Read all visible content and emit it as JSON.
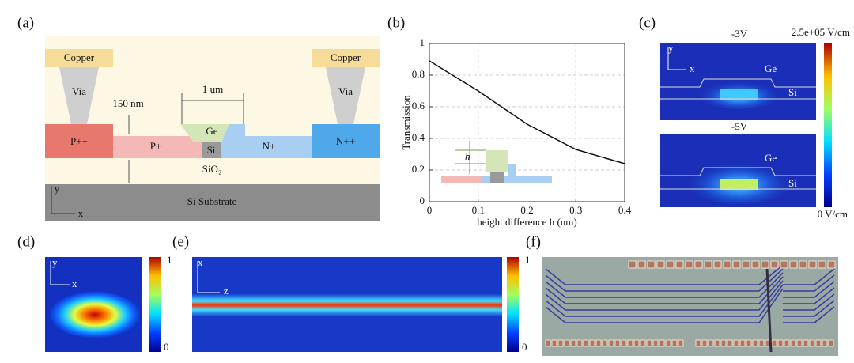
{
  "panels": {
    "a": {
      "label": "(a)",
      "copper_left": "Copper",
      "copper_right": "Copper",
      "via_left": "Via",
      "via_right": "Via",
      "dim_thickness": "150 nm",
      "dim_width": "1 um",
      "ge": "Ge",
      "si": "Si",
      "p_plus_plus": "P++",
      "p_plus": "P+",
      "n_plus": "N+",
      "n_plus_plus": "N++",
      "oxide": "SiO₂",
      "substrate": "Si Substrate",
      "axis_y": "y",
      "axis_x": "x"
    },
    "c": {
      "label": "(c)",
      "top_voltage": "-3V",
      "bottom_voltage": "-5V",
      "colorbar_max": "2.5e+05 V/cm",
      "colorbar_min": "0 V/cm",
      "top_ge": "Ge",
      "top_si": "Si",
      "bottom_ge": "Ge",
      "bottom_si": "Si",
      "axis_y": "y",
      "axis_x": "x"
    },
    "d": {
      "label": "(d)",
      "axis_y": "y",
      "axis_x": "x",
      "colorbar_max": "1",
      "colorbar_min": "0"
    },
    "e": {
      "label": "(e)",
      "axis_x": "x",
      "axis_z": "z",
      "colorbar_max": "1",
      "colorbar_min": "0"
    },
    "f": {
      "label": "(f)"
    }
  },
  "chart_data": {
    "type": "line",
    "panel_label": "(b)",
    "xlabel": "height difference h (um)",
    "ylabel": "Transmission",
    "inset_label": "h",
    "x": [
      0,
      0.1,
      0.2,
      0.3,
      0.4
    ],
    "series": [
      {
        "color": "#111111",
        "values": [
          0.89,
          0.7,
          0.49,
          0.33,
          0.24
        ]
      }
    ],
    "xlim": [
      0,
      0.4
    ],
    "ylim": [
      0,
      1
    ],
    "xticks": [
      0,
      0.1,
      0.2,
      0.3,
      0.4
    ],
    "yticks": [
      0,
      0.2,
      0.4,
      0.6,
      0.8,
      1
    ],
    "grid": true
  }
}
